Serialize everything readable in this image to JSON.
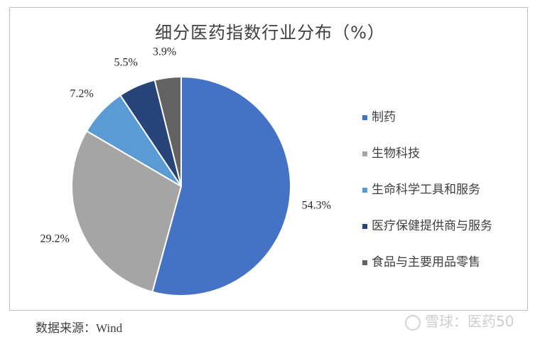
{
  "chart_data": {
    "type": "pie",
    "title": "细分医药指数行业分布（%）",
    "categories": [
      "制药",
      "生物科技",
      "生命科学工具和服务",
      "医疗保健提供商与服务",
      "食品与主要用品零售"
    ],
    "values": [
      54.3,
      29.2,
      7.2,
      5.5,
      3.9
    ],
    "labels": [
      "54.3%",
      "29.2%",
      "7.2%",
      "5.5%",
      "3.9%"
    ],
    "colors": [
      "#4472c4",
      "#a5a5a5",
      "#5b9bd5",
      "#264478",
      "#636363"
    ],
    "legend_position": "right",
    "start": "12 o'clock, clockwise"
  },
  "source": {
    "label": "数据来源：",
    "value": "Wind"
  },
  "watermark": {
    "text": "雪球：医药50"
  }
}
